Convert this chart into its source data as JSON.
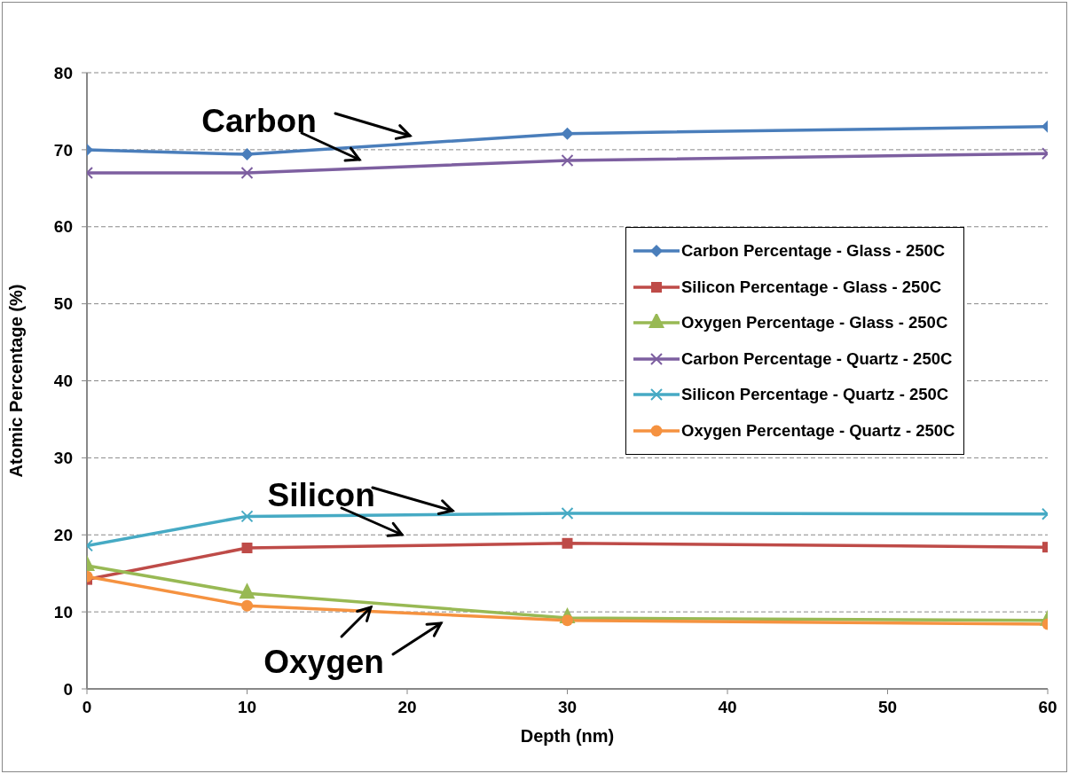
{
  "chart_data": {
    "type": "line",
    "xlabel": "Depth (nm)",
    "ylabel": "Atomic Percentage (%)",
    "x": [
      0,
      10,
      30,
      60
    ],
    "series": [
      {
        "name": "Carbon Percentage - Glass - 250C",
        "color": "#4a7ebb",
        "marker": "diamond",
        "values": [
          70.0,
          69.4,
          72.1,
          73.0
        ]
      },
      {
        "name": "Silicon Percentage - Glass - 250C",
        "color": "#be4b48",
        "marker": "square",
        "values": [
          14.2,
          18.3,
          18.9,
          18.4
        ]
      },
      {
        "name": "Oxygen Percentage - Glass - 250C",
        "color": "#98b954",
        "marker": "triangle",
        "values": [
          16.0,
          12.4,
          9.2,
          8.9
        ]
      },
      {
        "name": "Carbon Percentage - Quartz - 250C",
        "color": "#7d5fa0",
        "marker": "cross",
        "values": [
          67.0,
          67.0,
          68.6,
          69.5
        ]
      },
      {
        "name": "Silicon Percentage - Quartz - 250C",
        "color": "#46aac4",
        "marker": "cross",
        "values": [
          18.6,
          22.4,
          22.8,
          22.7
        ]
      },
      {
        "name": "Oxygen Percentage - Quartz - 250C",
        "color": "#f59240",
        "marker": "circle",
        "values": [
          14.6,
          10.8,
          8.9,
          8.4
        ]
      }
    ],
    "xlim": [
      0,
      60
    ],
    "xticks": [
      0,
      10,
      20,
      30,
      40,
      50,
      60
    ],
    "ylim": [
      0,
      80
    ],
    "yticks": [
      0,
      10,
      20,
      30,
      40,
      50,
      60,
      70,
      80
    ],
    "grid": "y",
    "legend": "right",
    "line_style": "solid",
    "annotations": [
      {
        "text": "Carbon",
        "x": 20,
        "y": 70.8
      },
      {
        "text": "Silicon",
        "x": 23,
        "y": 22.5
      },
      {
        "text": "Oxygen",
        "x": 22,
        "y": 9.7
      }
    ]
  }
}
